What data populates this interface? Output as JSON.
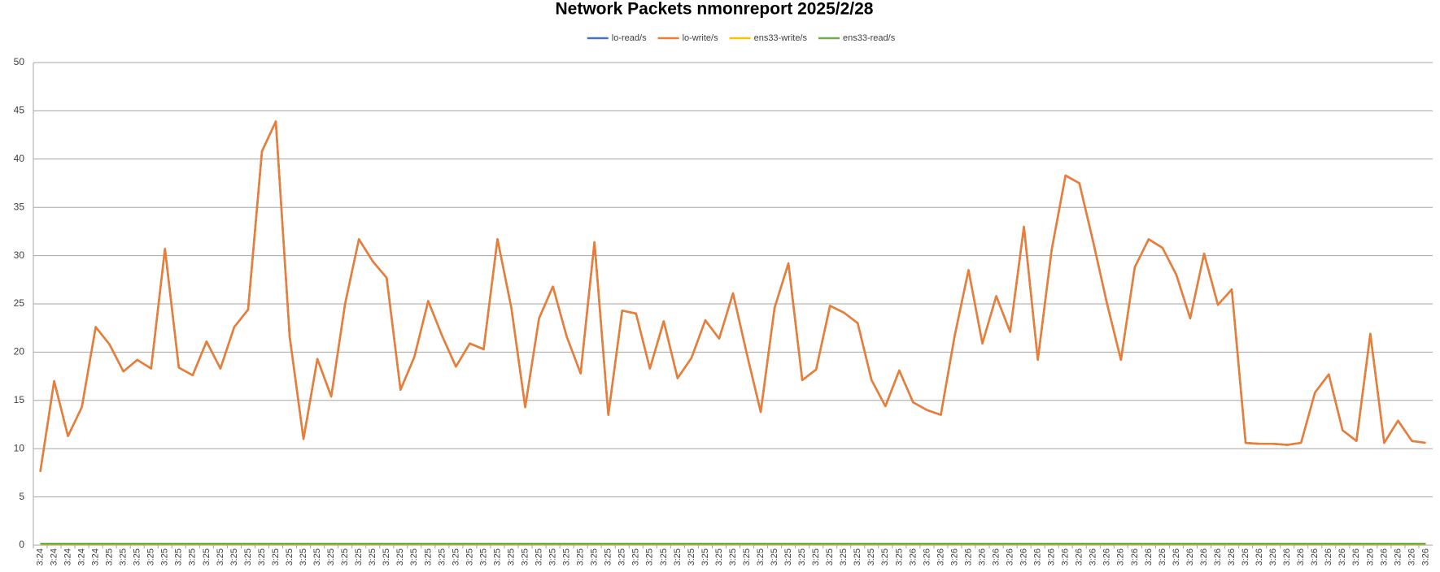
{
  "chart_data": {
    "type": "line",
    "title": "Network Packets nmonreport  2025/2/28",
    "categories": [
      "3:24",
      "3:24",
      "3:24",
      "3:24",
      "3:24",
      "3:25",
      "3:25",
      "3:25",
      "3:25",
      "3:25",
      "3:25",
      "3:25",
      "3:25",
      "3:25",
      "3:25",
      "3:25",
      "3:25",
      "3:25",
      "3:25",
      "3:25",
      "3:25",
      "3:25",
      "3:25",
      "3:25",
      "3:25",
      "3:25",
      "3:25",
      "3:25",
      "3:25",
      "3:25",
      "3:25",
      "3:25",
      "3:25",
      "3:25",
      "3:25",
      "3:25",
      "3:25",
      "3:25",
      "3:25",
      "3:25",
      "3:25",
      "3:25",
      "3:25",
      "3:25",
      "3:25",
      "3:25",
      "3:25",
      "3:25",
      "3:25",
      "3:25",
      "3:25",
      "3:25",
      "3:25",
      "3:25",
      "3:25",
      "3:25",
      "3:25",
      "3:25",
      "3:25",
      "3:25",
      "3:25",
      "3:25",
      "3:25",
      "3:26",
      "3:26",
      "3:26",
      "3:26",
      "3:26",
      "3:26",
      "3:26",
      "3:26",
      "3:26",
      "3:26",
      "3:26",
      "3:26",
      "3:26",
      "3:26",
      "3:26",
      "3:26",
      "3:26",
      "3:26",
      "3:26",
      "3:26",
      "3:26",
      "3:26",
      "3:26",
      "3:26",
      "3:26",
      "3:26",
      "3:26",
      "3:26",
      "3:26",
      "3:26",
      "3:26",
      "3:26",
      "3:26",
      "3:26",
      "3:26",
      "3:26",
      "3:26",
      "3:26"
    ],
    "series": [
      {
        "name": "lo-read/s",
        "color": "#4472c4",
        "values": [
          7.6,
          17,
          11.3,
          14.3,
          22.6,
          20.8,
          18,
          19.2,
          18.3,
          30.7,
          18.4,
          17.6,
          21.1,
          18.3,
          22.6,
          24.4,
          40.8,
          43.9,
          21.6,
          11,
          19.3,
          15.4,
          25,
          31.7,
          29.4,
          27.7,
          16.1,
          19.5,
          25.3,
          21.7,
          18.5,
          20.9,
          20.3,
          31.7,
          24.6,
          14.3,
          23.5,
          26.8,
          21.6,
          17.8,
          31.4,
          13.5,
          24.3,
          24,
          18.3,
          23.2,
          17.3,
          19.4,
          23.3,
          21.4,
          26.1,
          19.8,
          13.8,
          24.6,
          29.2,
          17.1,
          18.2,
          24.8,
          24.1,
          23,
          17.1,
          14.4,
          18.1,
          14.8,
          14,
          13.5,
          21.7,
          28.5,
          20.9,
          25.8,
          22.1,
          33,
          19.2,
          30.6,
          38.3,
          37.5,
          31.4,
          25,
          19.2,
          28.8,
          31.7,
          30.8,
          28,
          23.5,
          30.2,
          24.9,
          26.5,
          10.6,
          10.5,
          10.5,
          10.4,
          10.6,
          15.8,
          17.7,
          11.9,
          10.8,
          21.9,
          10.6,
          12.9,
          10.8,
          10.6
        ]
      },
      {
        "name": "lo-write/s",
        "color": "#ed7d31",
        "values": [
          7.6,
          17,
          11.3,
          14.3,
          22.6,
          20.8,
          18,
          19.2,
          18.3,
          30.7,
          18.4,
          17.6,
          21.1,
          18.3,
          22.6,
          24.4,
          40.8,
          43.9,
          21.6,
          11,
          19.3,
          15.4,
          25,
          31.7,
          29.4,
          27.7,
          16.1,
          19.5,
          25.3,
          21.7,
          18.5,
          20.9,
          20.3,
          31.7,
          24.6,
          14.3,
          23.5,
          26.8,
          21.6,
          17.8,
          31.4,
          13.5,
          24.3,
          24,
          18.3,
          23.2,
          17.3,
          19.4,
          23.3,
          21.4,
          26.1,
          19.8,
          13.8,
          24.6,
          29.2,
          17.1,
          18.2,
          24.8,
          24.1,
          23,
          17.1,
          14.4,
          18.1,
          14.8,
          14,
          13.5,
          21.7,
          28.5,
          20.9,
          25.8,
          22.1,
          33,
          19.2,
          30.6,
          38.3,
          37.5,
          31.4,
          25,
          19.2,
          28.8,
          31.7,
          30.8,
          28,
          23.5,
          30.2,
          24.9,
          26.5,
          10.6,
          10.5,
          10.5,
          10.4,
          10.6,
          15.8,
          17.7,
          11.9,
          10.8,
          21.9,
          10.6,
          12.9,
          10.8,
          10.6
        ]
      },
      {
        "name": "ens33-write/s",
        "color": "#ffc000",
        "values": [
          0.1,
          0.1,
          0.1,
          0.1,
          0.1,
          0.1,
          0.1,
          0.1,
          0.1,
          0.1,
          0.1,
          0.1,
          0.1,
          0.1,
          0.1,
          0.1,
          0.1,
          0.1,
          0.1,
          0.1,
          0.1,
          0.1,
          0.1,
          0.1,
          0.1,
          0.1,
          0.1,
          0.1,
          0.1,
          0.1,
          0.1,
          0.1,
          0.1,
          0.1,
          0.1,
          0.1,
          0.1,
          0.1,
          0.1,
          0.1,
          0.1,
          0.1,
          0.1,
          0.1,
          0.1,
          0.1,
          0.1,
          0.1,
          0.1,
          0.1,
          0.1,
          0.1,
          0.1,
          0.1,
          0.1,
          0.1,
          0.1,
          0.1,
          0.1,
          0.1,
          0.1,
          0.1,
          0.1,
          0.1,
          0.1,
          0.1,
          0.1,
          0.1,
          0.1,
          0.1,
          0.1,
          0.1,
          0.1,
          0.1,
          0.1,
          0.1,
          0.1,
          0.1,
          0.1,
          0.1,
          0.1,
          0.1,
          0.1,
          0.1,
          0.1,
          0.1,
          0.1,
          0.1,
          0.1,
          0.1,
          0.1,
          0.1,
          0.1,
          0.1,
          0.1,
          0.1,
          0.1,
          0.1,
          0.1,
          0.1,
          0.1
        ]
      },
      {
        "name": "ens33-read/s",
        "color": "#70ad47",
        "values": [
          0.15,
          0.15,
          0.15,
          0.15,
          0.15,
          0.15,
          0.15,
          0.15,
          0.15,
          0.15,
          0.15,
          0.15,
          0.15,
          0.15,
          0.15,
          0.15,
          0.15,
          0.15,
          0.15,
          0.15,
          0.15,
          0.15,
          0.15,
          0.15,
          0.15,
          0.15,
          0.15,
          0.15,
          0.15,
          0.15,
          0.15,
          0.15,
          0.15,
          0.15,
          0.15,
          0.15,
          0.15,
          0.15,
          0.15,
          0.15,
          0.15,
          0.15,
          0.15,
          0.15,
          0.15,
          0.15,
          0.15,
          0.15,
          0.15,
          0.15,
          0.15,
          0.15,
          0.15,
          0.15,
          0.15,
          0.15,
          0.15,
          0.15,
          0.15,
          0.15,
          0.15,
          0.15,
          0.15,
          0.15,
          0.15,
          0.15,
          0.15,
          0.15,
          0.15,
          0.15,
          0.15,
          0.15,
          0.15,
          0.15,
          0.15,
          0.15,
          0.15,
          0.15,
          0.15,
          0.15,
          0.15,
          0.15,
          0.15,
          0.15,
          0.15,
          0.15,
          0.15,
          0.15,
          0.15,
          0.15,
          0.15,
          0.15,
          0.15,
          0.15,
          0.15,
          0.15,
          0.15,
          0.15,
          0.15,
          0.15,
          0.15
        ]
      }
    ],
    "ylim": [
      0,
      50
    ],
    "yticks": [
      0,
      5,
      10,
      15,
      20,
      25,
      30,
      35,
      40,
      45,
      50
    ],
    "grid": true,
    "legend": "top"
  }
}
